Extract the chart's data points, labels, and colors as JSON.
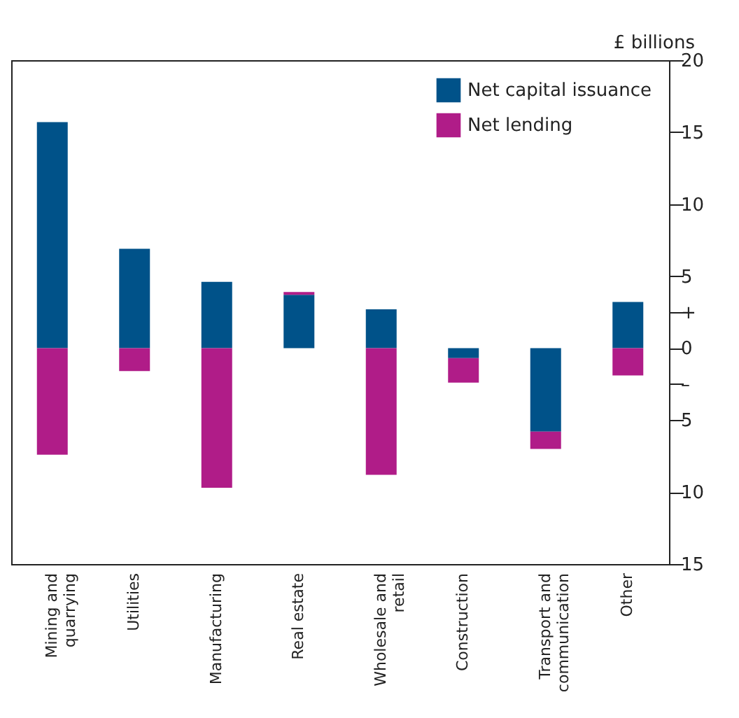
{
  "chart_data": {
    "type": "bar",
    "stacked": true,
    "ylabel": "£ billions",
    "categories": [
      "Mining and quarrying",
      "Utilities",
      "Manufacturing",
      "Real estate",
      "Wholesale and retail",
      "Construction",
      "Transport and communication",
      "Other"
    ],
    "series": [
      {
        "name": "Net capital issuance",
        "color": "#005289",
        "values": [
          15.7,
          6.9,
          4.6,
          3.7,
          2.7,
          -0.7,
          -5.8,
          3.2
        ]
      },
      {
        "name": "Net lending",
        "color": "#b01c88",
        "values": [
          -7.4,
          -1.6,
          -9.7,
          0.2,
          -8.8,
          -1.7,
          -1.2,
          -1.9
        ]
      }
    ],
    "ylim": [
      -15,
      20
    ],
    "yticks": [
      {
        "value": -15,
        "label": "15"
      },
      {
        "value": -10,
        "label": "10"
      },
      {
        "value": -5,
        "label": "5"
      },
      {
        "value": -2.5,
        "label": "–"
      },
      0,
      {
        "value": 2.5,
        "label": "+"
      },
      5,
      10,
      15,
      20
    ],
    "legend": "top right",
    "grid": false
  }
}
